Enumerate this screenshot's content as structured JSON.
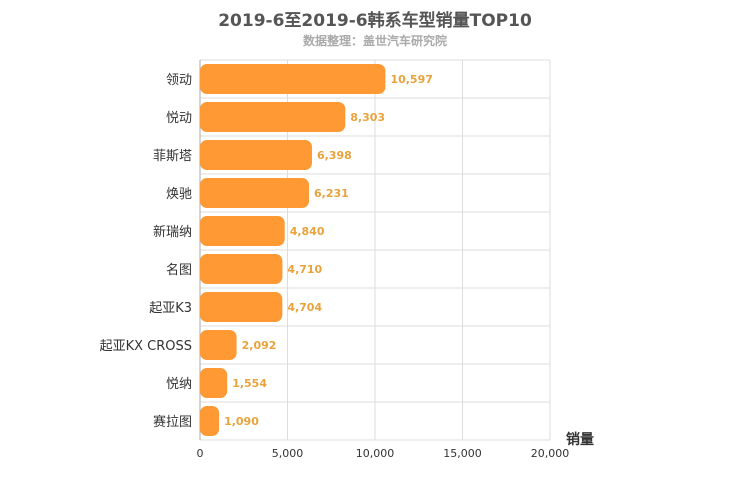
{
  "chart_data": {
    "type": "bar",
    "orientation": "horizontal",
    "title": "2019-6至2019-6韩系车型销量TOP10",
    "subtitle": "数据整理：盖世汽车研究院",
    "xlabel": "销量",
    "categories": [
      "领动",
      "悦动",
      "菲斯塔",
      "焕驰",
      "新瑞纳",
      "名图",
      "起亚K3",
      "起亚KX CROSS",
      "悦纳",
      "赛拉图"
    ],
    "values": [
      10597,
      8303,
      6398,
      6231,
      4840,
      4710,
      4704,
      2092,
      1554,
      1090
    ],
    "value_labels": [
      "10,597",
      "8,303",
      "6,398",
      "6,231",
      "4,840",
      "4,710",
      "4,704",
      "2,092",
      "1,554",
      "1,090"
    ],
    "xlim": [
      0,
      20000
    ],
    "xticks": [
      "0",
      "5,000",
      "10,000",
      "15,000",
      "20,000"
    ],
    "grid": true,
    "colors": {
      "bar": "#ff9933",
      "label": "#e8a33d",
      "grid": "#dddddd",
      "axis_text": "#333333"
    }
  }
}
